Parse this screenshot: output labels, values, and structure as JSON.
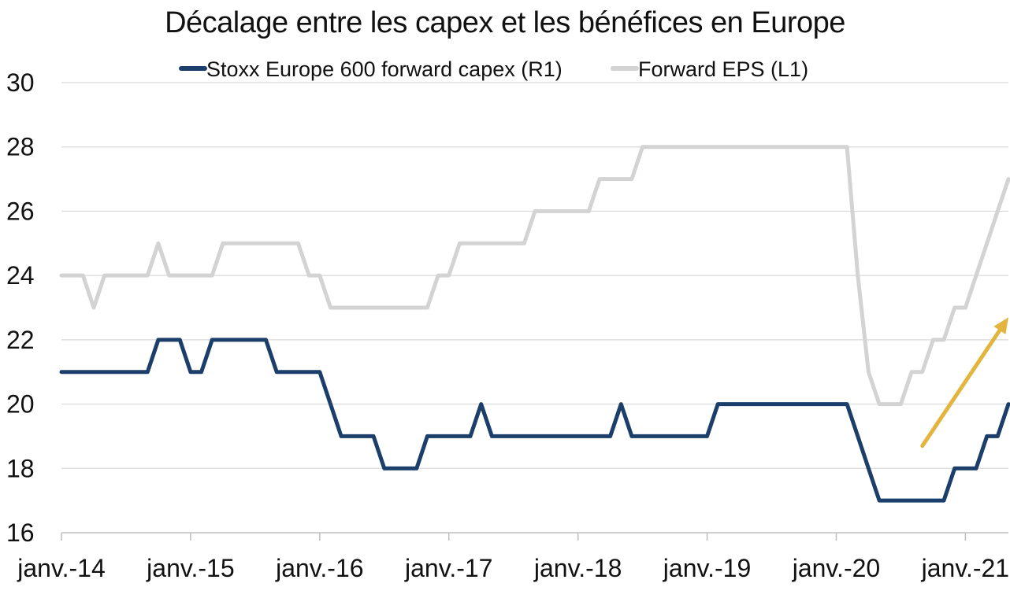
{
  "chart_data": {
    "type": "line",
    "title": "Décalage entre les capex et les bénéfices en Europe",
    "x_tick_labels": [
      "janv.-14",
      "janv.-15",
      "janv.-16",
      "janv.-17",
      "janv.-18",
      "janv.-19",
      "janv.-20",
      "janv.-21"
    ],
    "x_range_months": [
      "2014-01",
      "2021-05"
    ],
    "ylim": [
      16,
      30
    ],
    "y_ticks": [
      16,
      18,
      20,
      22,
      24,
      26,
      28,
      30
    ],
    "grid": "horizontal",
    "legend_position": "top",
    "series": [
      {
        "name": "Stoxx Europe 600 forward capex (R1)",
        "color": "#1b3f6a",
        "points": [
          [
            "2014-01",
            21
          ],
          [
            "2014-02",
            21
          ],
          [
            "2014-03",
            21
          ],
          [
            "2014-04",
            21
          ],
          [
            "2014-05",
            21
          ],
          [
            "2014-06",
            21
          ],
          [
            "2014-07",
            21
          ],
          [
            "2014-08",
            21
          ],
          [
            "2014-09",
            21
          ],
          [
            "2014-10",
            22
          ],
          [
            "2014-11",
            22
          ],
          [
            "2014-12",
            22
          ],
          [
            "2015-01",
            21
          ],
          [
            "2015-02",
            21
          ],
          [
            "2015-03",
            22
          ],
          [
            "2015-04",
            22
          ],
          [
            "2015-05",
            22
          ],
          [
            "2015-06",
            22
          ],
          [
            "2015-07",
            22
          ],
          [
            "2015-08",
            22
          ],
          [
            "2015-09",
            21
          ],
          [
            "2015-10",
            21
          ],
          [
            "2015-11",
            21
          ],
          [
            "2015-12",
            21
          ],
          [
            "2016-01",
            21
          ],
          [
            "2016-02",
            20
          ],
          [
            "2016-03",
            19
          ],
          [
            "2016-04",
            19
          ],
          [
            "2016-05",
            19
          ],
          [
            "2016-06",
            19
          ],
          [
            "2016-07",
            18
          ],
          [
            "2016-08",
            18
          ],
          [
            "2016-09",
            18
          ],
          [
            "2016-10",
            18
          ],
          [
            "2016-11",
            19
          ],
          [
            "2016-12",
            19
          ],
          [
            "2017-01",
            19
          ],
          [
            "2017-02",
            19
          ],
          [
            "2017-03",
            19
          ],
          [
            "2017-04",
            20
          ],
          [
            "2017-05",
            19
          ],
          [
            "2017-06",
            19
          ],
          [
            "2017-07",
            19
          ],
          [
            "2017-08",
            19
          ],
          [
            "2017-09",
            19
          ],
          [
            "2017-10",
            19
          ],
          [
            "2017-11",
            19
          ],
          [
            "2017-12",
            19
          ],
          [
            "2018-01",
            19
          ],
          [
            "2018-02",
            19
          ],
          [
            "2018-03",
            19
          ],
          [
            "2018-04",
            19
          ],
          [
            "2018-05",
            20
          ],
          [
            "2018-06",
            19
          ],
          [
            "2018-07",
            19
          ],
          [
            "2018-08",
            19
          ],
          [
            "2018-09",
            19
          ],
          [
            "2018-10",
            19
          ],
          [
            "2018-11",
            19
          ],
          [
            "2018-12",
            19
          ],
          [
            "2019-01",
            19
          ],
          [
            "2019-02",
            20
          ],
          [
            "2019-03",
            20
          ],
          [
            "2019-04",
            20
          ],
          [
            "2019-05",
            20
          ],
          [
            "2019-06",
            20
          ],
          [
            "2019-07",
            20
          ],
          [
            "2019-08",
            20
          ],
          [
            "2019-09",
            20
          ],
          [
            "2019-10",
            20
          ],
          [
            "2019-11",
            20
          ],
          [
            "2019-12",
            20
          ],
          [
            "2020-01",
            20
          ],
          [
            "2020-02",
            20
          ],
          [
            "2020-03",
            19
          ],
          [
            "2020-04",
            18
          ],
          [
            "2020-05",
            17
          ],
          [
            "2020-06",
            17
          ],
          [
            "2020-07",
            17
          ],
          [
            "2020-08",
            17
          ],
          [
            "2020-09",
            17
          ],
          [
            "2020-10",
            17
          ],
          [
            "2020-11",
            17
          ],
          [
            "2020-12",
            18
          ],
          [
            "2021-01",
            18
          ],
          [
            "2021-02",
            18
          ],
          [
            "2021-03",
            19
          ],
          [
            "2021-04",
            19
          ],
          [
            "2021-05",
            20
          ]
        ]
      },
      {
        "name": "Forward EPS (L1)",
        "color": "#d3d3d3",
        "points": [
          [
            "2014-01",
            24
          ],
          [
            "2014-02",
            24
          ],
          [
            "2014-03",
            24
          ],
          [
            "2014-04",
            23
          ],
          [
            "2014-05",
            24
          ],
          [
            "2014-06",
            24
          ],
          [
            "2014-07",
            24
          ],
          [
            "2014-08",
            24
          ],
          [
            "2014-09",
            24
          ],
          [
            "2014-10",
            25
          ],
          [
            "2014-11",
            24
          ],
          [
            "2014-12",
            24
          ],
          [
            "2015-01",
            24
          ],
          [
            "2015-02",
            24
          ],
          [
            "2015-03",
            24
          ],
          [
            "2015-04",
            25
          ],
          [
            "2015-05",
            25
          ],
          [
            "2015-06",
            25
          ],
          [
            "2015-07",
            25
          ],
          [
            "2015-08",
            25
          ],
          [
            "2015-09",
            25
          ],
          [
            "2015-10",
            25
          ],
          [
            "2015-11",
            25
          ],
          [
            "2015-12",
            24
          ],
          [
            "2016-01",
            24
          ],
          [
            "2016-02",
            23
          ],
          [
            "2016-03",
            23
          ],
          [
            "2016-04",
            23
          ],
          [
            "2016-05",
            23
          ],
          [
            "2016-06",
            23
          ],
          [
            "2016-07",
            23
          ],
          [
            "2016-08",
            23
          ],
          [
            "2016-09",
            23
          ],
          [
            "2016-10",
            23
          ],
          [
            "2016-11",
            23
          ],
          [
            "2016-12",
            24
          ],
          [
            "2017-01",
            24
          ],
          [
            "2017-02",
            25
          ],
          [
            "2017-03",
            25
          ],
          [
            "2017-04",
            25
          ],
          [
            "2017-05",
            25
          ],
          [
            "2017-06",
            25
          ],
          [
            "2017-07",
            25
          ],
          [
            "2017-08",
            25
          ],
          [
            "2017-09",
            26
          ],
          [
            "2017-10",
            26
          ],
          [
            "2017-11",
            26
          ],
          [
            "2017-12",
            26
          ],
          [
            "2018-01",
            26
          ],
          [
            "2018-02",
            26
          ],
          [
            "2018-03",
            27
          ],
          [
            "2018-04",
            27
          ],
          [
            "2018-05",
            27
          ],
          [
            "2018-06",
            27
          ],
          [
            "2018-07",
            28
          ],
          [
            "2018-08",
            28
          ],
          [
            "2018-09",
            28
          ],
          [
            "2018-10",
            28
          ],
          [
            "2018-11",
            28
          ],
          [
            "2018-12",
            28
          ],
          [
            "2019-01",
            28
          ],
          [
            "2019-02",
            28
          ],
          [
            "2019-03",
            28
          ],
          [
            "2019-04",
            28
          ],
          [
            "2019-05",
            28
          ],
          [
            "2019-06",
            28
          ],
          [
            "2019-07",
            28
          ],
          [
            "2019-08",
            28
          ],
          [
            "2019-09",
            28
          ],
          [
            "2019-10",
            28
          ],
          [
            "2019-11",
            28
          ],
          [
            "2019-12",
            28
          ],
          [
            "2020-01",
            28
          ],
          [
            "2020-02",
            28
          ],
          [
            "2020-03",
            24
          ],
          [
            "2020-04",
            21
          ],
          [
            "2020-05",
            20
          ],
          [
            "2020-06",
            20
          ],
          [
            "2020-07",
            20
          ],
          [
            "2020-08",
            21
          ],
          [
            "2020-09",
            21
          ],
          [
            "2020-10",
            22
          ],
          [
            "2020-11",
            22
          ],
          [
            "2020-12",
            23
          ],
          [
            "2021-01",
            23
          ],
          [
            "2021-02",
            24
          ],
          [
            "2021-03",
            25
          ],
          [
            "2021-04",
            26
          ],
          [
            "2021-05",
            27
          ]
        ]
      }
    ],
    "annotations": [
      {
        "type": "arrow",
        "color": "#e3b53f",
        "from": [
          "2020-09",
          18.7
        ],
        "to": [
          "2021-05",
          22.7
        ]
      }
    ]
  }
}
